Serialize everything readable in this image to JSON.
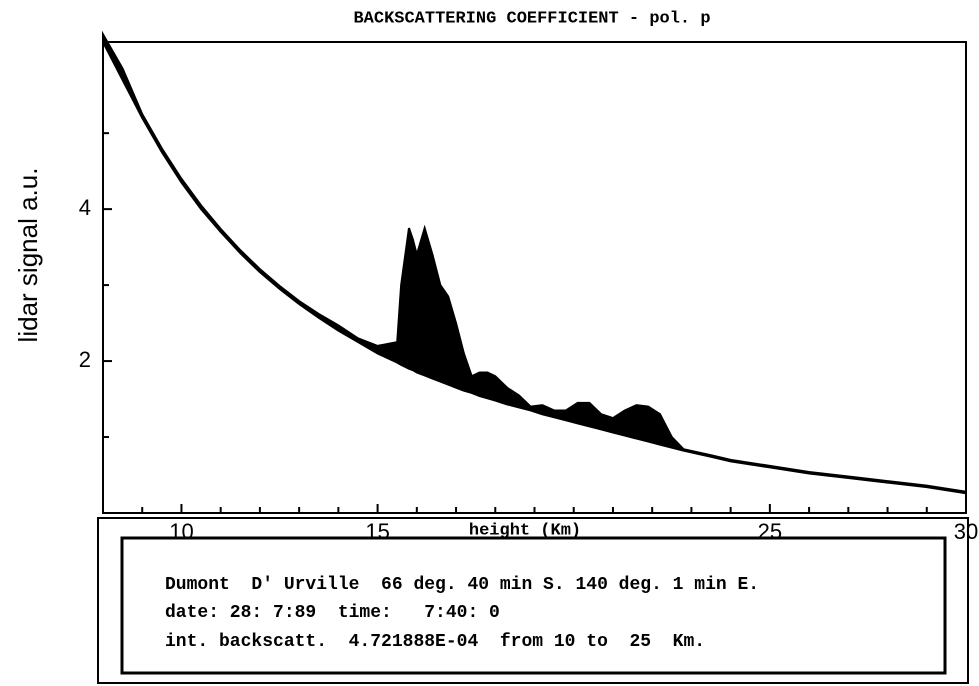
{
  "chart_data": {
    "type": "area-between",
    "title": "BACKSCATTERING  COEFFICIENT - pol. p",
    "ylabel": "lidar signal  a.u.",
    "xlabel": "height (Km)",
    "x": [
      8,
      8.5,
      9,
      9.5,
      10,
      10.5,
      11,
      11.5,
      12,
      12.5,
      13,
      13.5,
      14,
      14.5,
      15,
      15.5,
      15.6,
      15.8,
      15.9,
      16.0,
      16.2,
      16.4,
      16.6,
      16.8,
      17.0,
      17.2,
      17.4,
      17.6,
      17.8,
      18.0,
      18.3,
      18.6,
      18.9,
      19.2,
      19.5,
      19.8,
      20.1,
      20.4,
      20.7,
      21.0,
      21.3,
      21.6,
      21.9,
      22.2,
      22.5,
      22.8,
      23.5,
      24,
      25,
      26,
      27,
      28,
      29,
      30
    ],
    "series": [
      {
        "color": "#000000",
        "values": [
          6.2,
          5.7,
          5.2,
          4.75,
          4.35,
          4.0,
          3.7,
          3.42,
          3.17,
          2.95,
          2.75,
          2.57,
          2.4,
          2.25,
          2.1,
          1.98,
          1.95,
          1.9,
          1.88,
          1.85,
          1.81,
          1.77,
          1.73,
          1.69,
          1.65,
          1.61,
          1.58,
          1.54,
          1.51,
          1.48,
          1.43,
          1.39,
          1.35,
          1.3,
          1.26,
          1.22,
          1.18,
          1.14,
          1.1,
          1.06,
          1.02,
          0.98,
          0.94,
          0.9,
          0.86,
          0.82,
          0.74,
          0.68,
          0.6,
          0.52,
          0.46,
          0.4,
          0.34,
          0.26
        ]
      },
      {
        "color": "#000000",
        "values": [
          6.3,
          5.85,
          5.25,
          4.8,
          4.4,
          4.05,
          3.74,
          3.46,
          3.21,
          2.99,
          2.79,
          2.62,
          2.47,
          2.3,
          2.2,
          2.25,
          3.0,
          3.75,
          3.6,
          3.4,
          3.75,
          3.4,
          3.0,
          2.85,
          2.5,
          2.1,
          1.8,
          1.85,
          1.85,
          1.8,
          1.65,
          1.55,
          1.4,
          1.42,
          1.35,
          1.35,
          1.45,
          1.45,
          1.3,
          1.25,
          1.35,
          1.42,
          1.4,
          1.3,
          1.0,
          0.84,
          0.76,
          0.7,
          0.62,
          0.54,
          0.48,
          0.42,
          0.36,
          0.28
        ]
      }
    ],
    "xlim": [
      8,
      30
    ],
    "ylim": [
      0,
      6.2
    ],
    "xticks": [
      10,
      15,
      25,
      30
    ],
    "x_minor_ticks": [
      9,
      11,
      12,
      13,
      14,
      16,
      17,
      18,
      19,
      20,
      21,
      22,
      23,
      24,
      26,
      27,
      28,
      29
    ],
    "yticks": [
      2,
      4
    ],
    "y_minor_ticks": [
      1,
      3,
      5
    ]
  },
  "info_box": {
    "lines": [
      "Dumont  D' Urville  66 deg. 40 min S. 140 deg. 1 min E.",
      "date: 28: 7:89  time:   7:40: 0",
      "int. backscatt.  4.721888E-04  from 10 to  25  Km."
    ]
  }
}
